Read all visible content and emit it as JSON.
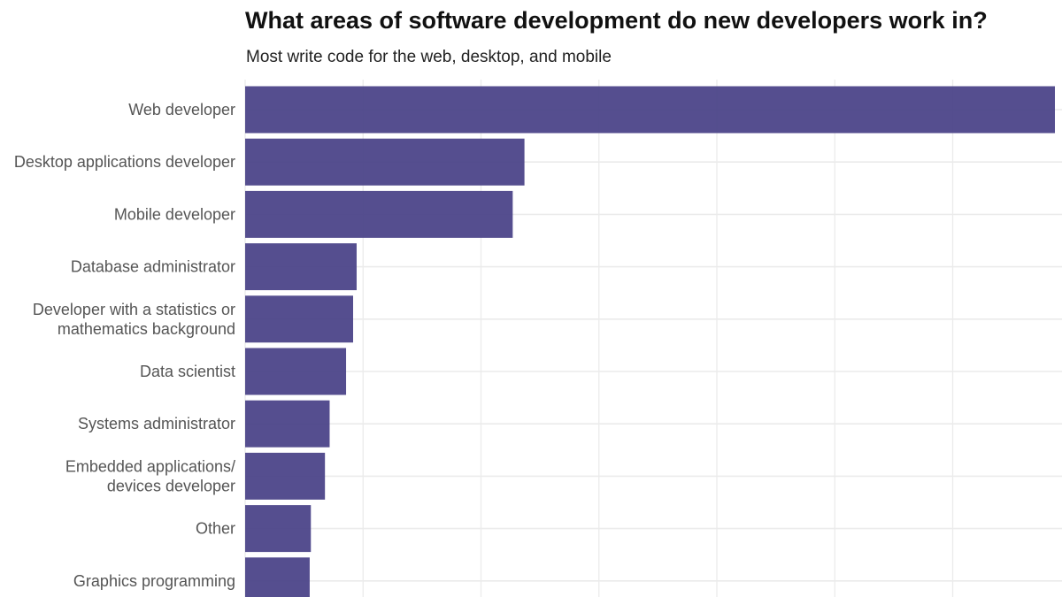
{
  "chart_data": {
    "type": "bar",
    "orientation": "horizontal",
    "title": "What areas of software development do new developers work in?",
    "subtitle": "Most write code for the web, desktop, and mobile",
    "xlabel": "",
    "ylabel": "",
    "categories": [
      [
        "Web developer"
      ],
      [
        "Desktop applications developer"
      ],
      [
        "Mobile developer"
      ],
      [
        "Database administrator"
      ],
      [
        "Developer with a statistics or",
        "mathematics background"
      ],
      [
        "Data scientist"
      ],
      [
        "Systems administrator"
      ],
      [
        "Embedded applications/",
        "devices developer"
      ],
      [
        "Other"
      ],
      [
        "Graphics programming"
      ]
    ],
    "values": [
      0.69,
      0.238,
      0.228,
      0.095,
      0.092,
      0.086,
      0.072,
      0.068,
      0.056,
      0.055
    ],
    "xlim": [
      0,
      0.69
    ],
    "grid": true,
    "colors": {
      "bar": "#4c4589",
      "grid": "#ebebeb",
      "label": "#555555"
    }
  }
}
